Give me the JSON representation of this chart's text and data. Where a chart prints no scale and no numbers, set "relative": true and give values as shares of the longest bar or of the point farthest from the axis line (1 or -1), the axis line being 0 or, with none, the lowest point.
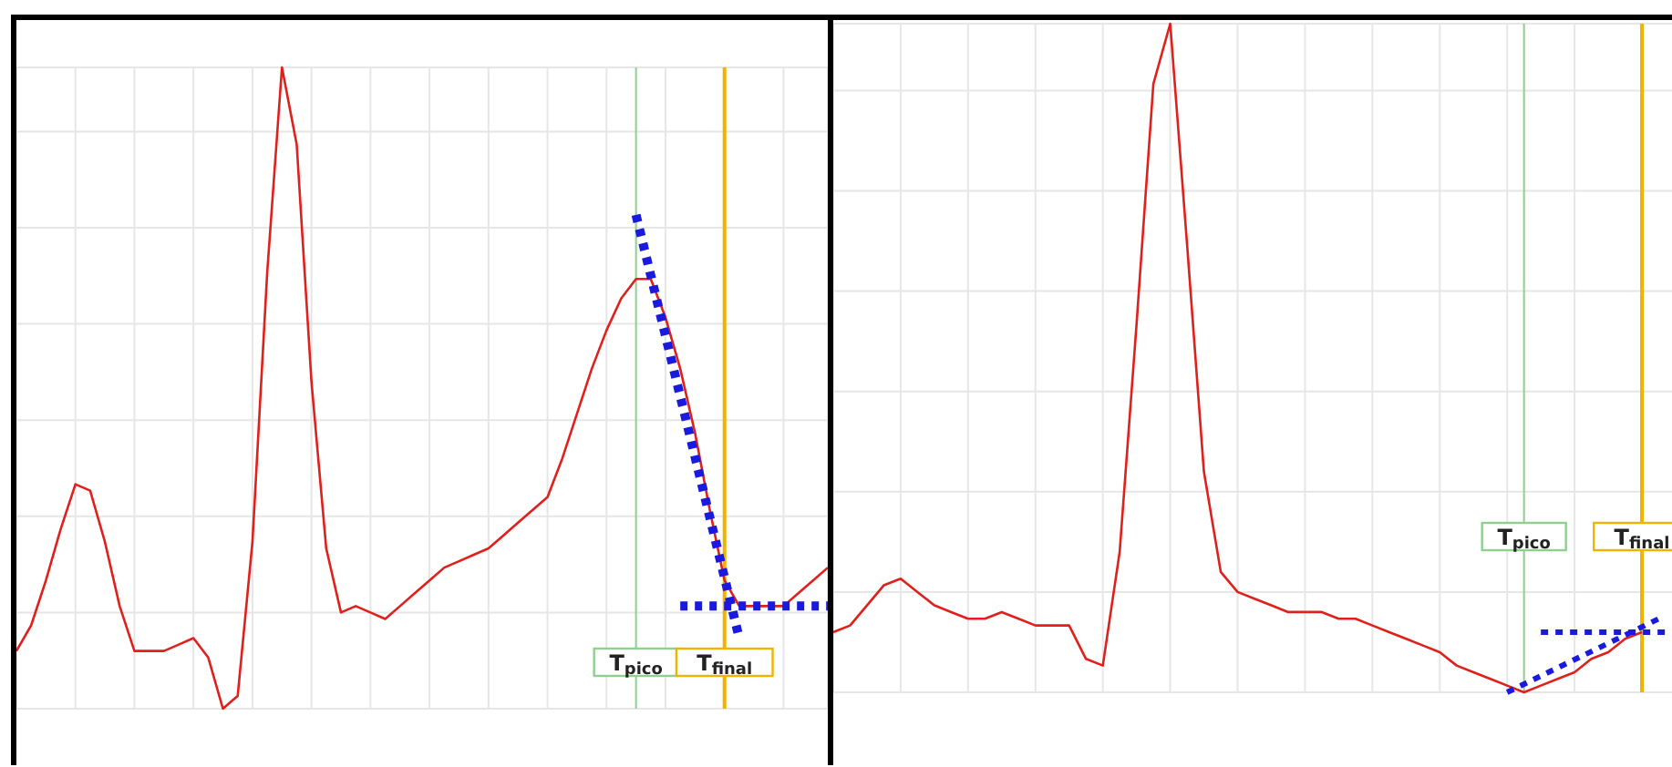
{
  "chart_data": [
    {
      "type": "line",
      "relative": true,
      "grid": true,
      "tick_labels": false,
      "categories": [
        null,
        null,
        null,
        null,
        null,
        null,
        null,
        null,
        null,
        null,
        null,
        null,
        null,
        null,
        null,
        null,
        null,
        null,
        null,
        null,
        null,
        null,
        null,
        null,
        null,
        null,
        null,
        null,
        null,
        null,
        null,
        null,
        null,
        null,
        null,
        null,
        null,
        null,
        null,
        null,
        null,
        null,
        "T$_{pico}$",
        null,
        null,
        null,
        null,
        null,
        "T$_{final}$",
        null,
        null,
        null,
        null,
        null,
        null,
        null
      ],
      "series": [
        {
          "color": "#e0201c",
          "values": [
            0.09,
            0.13,
            0.2,
            0.28,
            0.35,
            0.34,
            0.26,
            0.16,
            0.09,
            0.09,
            0.09,
            0.1,
            0.11,
            0.08,
            0,
            0.02,
            0.26,
            0.68,
            1,
            0.88,
            0.51,
            0.25,
            0.15,
            0.16,
            0.15,
            0.14,
            0.16,
            0.18,
            0.2,
            0.22,
            0.23,
            0.24,
            0.25,
            0.27,
            0.29,
            0.31,
            0.33,
            0.39,
            0.46,
            0.53,
            0.59,
            0.64,
            0.67,
            0.67,
            0.61,
            0.53,
            0.43,
            0.31,
            0.2,
            0.16,
            0.16,
            0.16,
            0.16,
            0.18,
            0.2,
            0.22
          ]
        },
        {
          "type": "line",
          "line_style": "dotted",
          "color": "#1a1adf",
          "values": [
            null,
            null,
            null,
            null,
            null,
            null,
            null,
            null,
            null,
            null,
            null,
            null,
            null,
            null,
            null,
            null,
            null,
            null,
            null,
            null,
            null,
            null,
            null,
            null,
            null,
            null,
            null,
            null,
            null,
            null,
            null,
            null,
            null,
            null,
            null,
            null,
            null,
            null,
            null,
            null,
            null,
            null,
            0.77,
            null,
            null,
            null,
            null,
            null,
            null,
            0.11,
            null,
            null,
            null,
            null,
            null,
            null
          ]
        },
        {
          "type": "line",
          "line_style": "dotted",
          "color": "#1a1adf",
          "values": [
            null,
            null,
            null,
            null,
            null,
            null,
            null,
            null,
            null,
            null,
            null,
            null,
            null,
            null,
            null,
            null,
            null,
            null,
            null,
            null,
            null,
            null,
            null,
            null,
            null,
            null,
            null,
            null,
            null,
            null,
            null,
            null,
            null,
            null,
            null,
            null,
            null,
            null,
            null,
            null,
            null,
            null,
            null,
            null,
            null,
            0.16,
            null,
            null,
            null,
            null,
            null,
            null,
            null,
            null,
            null,
            0.16
          ]
        }
      ],
      "ref_lines": [
        {
          "axis": "x",
          "value": "T$_{pico}$",
          "color": "#8fcf8f"
        },
        {
          "axis": "x",
          "value": "T$_{final}$",
          "color": "#f0b400"
        }
      ]
    },
    {
      "type": "line",
      "relative": true,
      "grid": true,
      "tick_labels": false,
      "categories": [
        null,
        null,
        null,
        null,
        null,
        null,
        null,
        null,
        null,
        null,
        null,
        null,
        null,
        null,
        null,
        null,
        null,
        null,
        null,
        null,
        null,
        null,
        null,
        null,
        null,
        null,
        null,
        null,
        null,
        null,
        null,
        null,
        null,
        null,
        null,
        null,
        null,
        null,
        null,
        null,
        null,
        "T$_{pico}$",
        null,
        null,
        null,
        null,
        null,
        null,
        "T$_{final}$",
        null,
        null
      ],
      "series": [
        {
          "color": "#e0201c",
          "values": [
            0.09,
            0.1,
            0.13,
            0.16,
            0.17,
            0.15,
            0.13,
            0.12,
            0.11,
            0.11,
            0.12,
            0.11,
            0.1,
            0.1,
            0.1,
            0.05,
            0.04,
            0.21,
            0.55,
            0.91,
            1,
            0.67,
            0.33,
            0.18,
            0.15,
            0.14,
            0.13,
            0.12,
            0.12,
            0.12,
            0.11,
            0.11,
            0.1,
            0.09,
            0.08,
            0.07,
            0.06,
            0.04,
            0.03,
            0.02,
            0.01,
            0,
            0.01,
            0.02,
            0.03,
            0.05,
            0.06,
            0.08,
            0.09,
            null,
            null
          ]
        },
        {
          "type": "line",
          "line_style": "dotted",
          "color": "#1a1adf",
          "values": [
            null,
            null,
            null,
            null,
            null,
            null,
            null,
            null,
            null,
            null,
            null,
            null,
            null,
            null,
            null,
            null,
            null,
            null,
            null,
            null,
            null,
            null,
            null,
            null,
            null,
            null,
            null,
            null,
            null,
            null,
            null,
            null,
            null,
            null,
            null,
            null,
            null,
            null,
            null,
            null,
            0,
            null,
            null,
            null,
            null,
            null,
            null,
            null,
            null,
            0.11,
            null
          ]
        },
        {
          "type": "line",
          "line_style": "dotted",
          "color": "#1a1adf",
          "values": [
            null,
            null,
            null,
            null,
            null,
            null,
            null,
            null,
            null,
            null,
            null,
            null,
            null,
            null,
            null,
            null,
            null,
            null,
            null,
            null,
            null,
            null,
            null,
            null,
            null,
            null,
            null,
            null,
            null,
            null,
            null,
            null,
            null,
            null,
            null,
            null,
            null,
            null,
            null,
            null,
            null,
            null,
            0.09,
            null,
            null,
            null,
            null,
            null,
            null,
            null,
            0.09
          ]
        }
      ],
      "ref_lines": [
        {
          "axis": "x",
          "value": "T$_{pico}$",
          "color": "#8fcf8f"
        },
        {
          "axis": "x",
          "value": "T$_{final}$",
          "color": "#f0b400"
        }
      ]
    }
  ]
}
